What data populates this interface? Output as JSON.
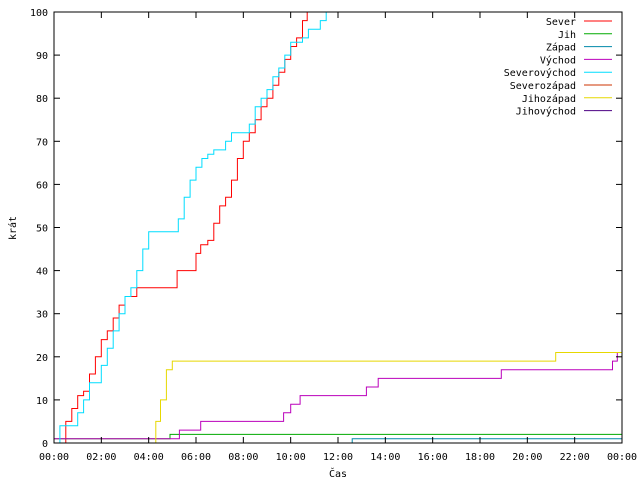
{
  "chart_data": {
    "type": "line",
    "xlabel": "Čas",
    "ylabel": "krát",
    "xlim": [
      0,
      24
    ],
    "ylim": [
      0,
      100
    ],
    "y_ticks": [
      0,
      10,
      20,
      30,
      40,
      50,
      60,
      70,
      80,
      90,
      100
    ],
    "x_ticks": [
      0,
      2,
      4,
      6,
      8,
      10,
      12,
      14,
      16,
      18,
      20,
      22,
      24
    ],
    "x_tick_labels": [
      "00:00",
      "02:00",
      "04:00",
      "06:00",
      "08:00",
      "10:00",
      "12:00",
      "14:00",
      "16:00",
      "18:00",
      "20:00",
      "22:00",
      "00:00"
    ],
    "grid": false,
    "legend_position": "top-right",
    "series": [
      {
        "name": "Sever",
        "color": "#ff0000",
        "points": [
          [
            0.25,
            0
          ],
          [
            0.5,
            5
          ],
          [
            0.75,
            8
          ],
          [
            1.0,
            11
          ],
          [
            1.25,
            12
          ],
          [
            1.5,
            16
          ],
          [
            1.75,
            20
          ],
          [
            2.0,
            24
          ],
          [
            2.25,
            26
          ],
          [
            2.5,
            29
          ],
          [
            2.75,
            32
          ],
          [
            3.0,
            34
          ],
          [
            3.5,
            36
          ],
          [
            4.25,
            36
          ],
          [
            5.1,
            36
          ],
          [
            5.2,
            40
          ],
          [
            5.8,
            40
          ],
          [
            6.0,
            44
          ],
          [
            6.2,
            46
          ],
          [
            6.5,
            47
          ],
          [
            6.75,
            51
          ],
          [
            7.0,
            55
          ],
          [
            7.25,
            57
          ],
          [
            7.5,
            61
          ],
          [
            7.75,
            66
          ],
          [
            8.0,
            70
          ],
          [
            8.25,
            72
          ],
          [
            8.5,
            75
          ],
          [
            8.75,
            78
          ],
          [
            9.0,
            80
          ],
          [
            9.25,
            83
          ],
          [
            9.5,
            86
          ],
          [
            9.75,
            89
          ],
          [
            10.0,
            92
          ],
          [
            10.25,
            94
          ],
          [
            10.5,
            98
          ],
          [
            10.7,
            100
          ]
        ]
      },
      {
        "name": "Jih",
        "color": "#00aa00",
        "points": [
          [
            0,
            1
          ],
          [
            4.85,
            1
          ],
          [
            4.9,
            2
          ],
          [
            24,
            2
          ]
        ]
      },
      {
        "name": "Západ",
        "color": "#0088aa",
        "points": [
          [
            12.5,
            0
          ],
          [
            12.6,
            1
          ],
          [
            24,
            1
          ]
        ]
      },
      {
        "name": "Východ",
        "color": "#bb00bb",
        "points": [
          [
            0,
            1
          ],
          [
            5.2,
            1
          ],
          [
            5.3,
            3
          ],
          [
            6.1,
            3
          ],
          [
            6.2,
            5
          ],
          [
            9.6,
            5
          ],
          [
            9.7,
            7
          ],
          [
            10.0,
            9
          ],
          [
            10.4,
            11
          ],
          [
            13.0,
            11
          ],
          [
            13.2,
            13
          ],
          [
            13.7,
            15
          ],
          [
            18.8,
            15
          ],
          [
            18.9,
            17
          ],
          [
            23.5,
            17
          ],
          [
            23.6,
            19
          ],
          [
            23.8,
            21
          ]
        ]
      },
      {
        "name": "Severovýchod",
        "color": "#00ddff",
        "points": [
          [
            0.15,
            0
          ],
          [
            0.25,
            4
          ],
          [
            0.75,
            4
          ],
          [
            1.0,
            7
          ],
          [
            1.25,
            10
          ],
          [
            1.5,
            14
          ],
          [
            1.75,
            14
          ],
          [
            2.0,
            18
          ],
          [
            2.25,
            22
          ],
          [
            2.5,
            26
          ],
          [
            2.75,
            30
          ],
          [
            3.0,
            34
          ],
          [
            3.25,
            36
          ],
          [
            3.5,
            40
          ],
          [
            3.75,
            45
          ],
          [
            4.0,
            49
          ],
          [
            4.75,
            49
          ],
          [
            5.25,
            52
          ],
          [
            5.5,
            57
          ],
          [
            5.75,
            61
          ],
          [
            6.0,
            64
          ],
          [
            6.25,
            66
          ],
          [
            6.5,
            67
          ],
          [
            6.75,
            68
          ],
          [
            7.25,
            70
          ],
          [
            7.5,
            72
          ],
          [
            8.0,
            72
          ],
          [
            8.25,
            74
          ],
          [
            8.5,
            78
          ],
          [
            8.75,
            80
          ],
          [
            9.0,
            82
          ],
          [
            9.25,
            85
          ],
          [
            9.5,
            87
          ],
          [
            9.75,
            90
          ],
          [
            10.0,
            93
          ],
          [
            10.5,
            94
          ],
          [
            10.75,
            96
          ],
          [
            11.25,
            98
          ],
          [
            11.5,
            100
          ]
        ]
      },
      {
        "name": "Severozápad",
        "color": "#cc3300",
        "points": []
      },
      {
        "name": "Jihozápad",
        "color": "#e6d800",
        "points": [
          [
            0,
            0
          ],
          [
            4.1,
            0
          ],
          [
            4.3,
            5
          ],
          [
            4.5,
            10
          ],
          [
            4.75,
            17
          ],
          [
            5.0,
            19
          ],
          [
            21.1,
            19
          ],
          [
            21.2,
            21
          ],
          [
            24,
            21
          ]
        ]
      },
      {
        "name": "Jihovýchod",
        "color": "#4b0082",
        "points": []
      }
    ]
  }
}
